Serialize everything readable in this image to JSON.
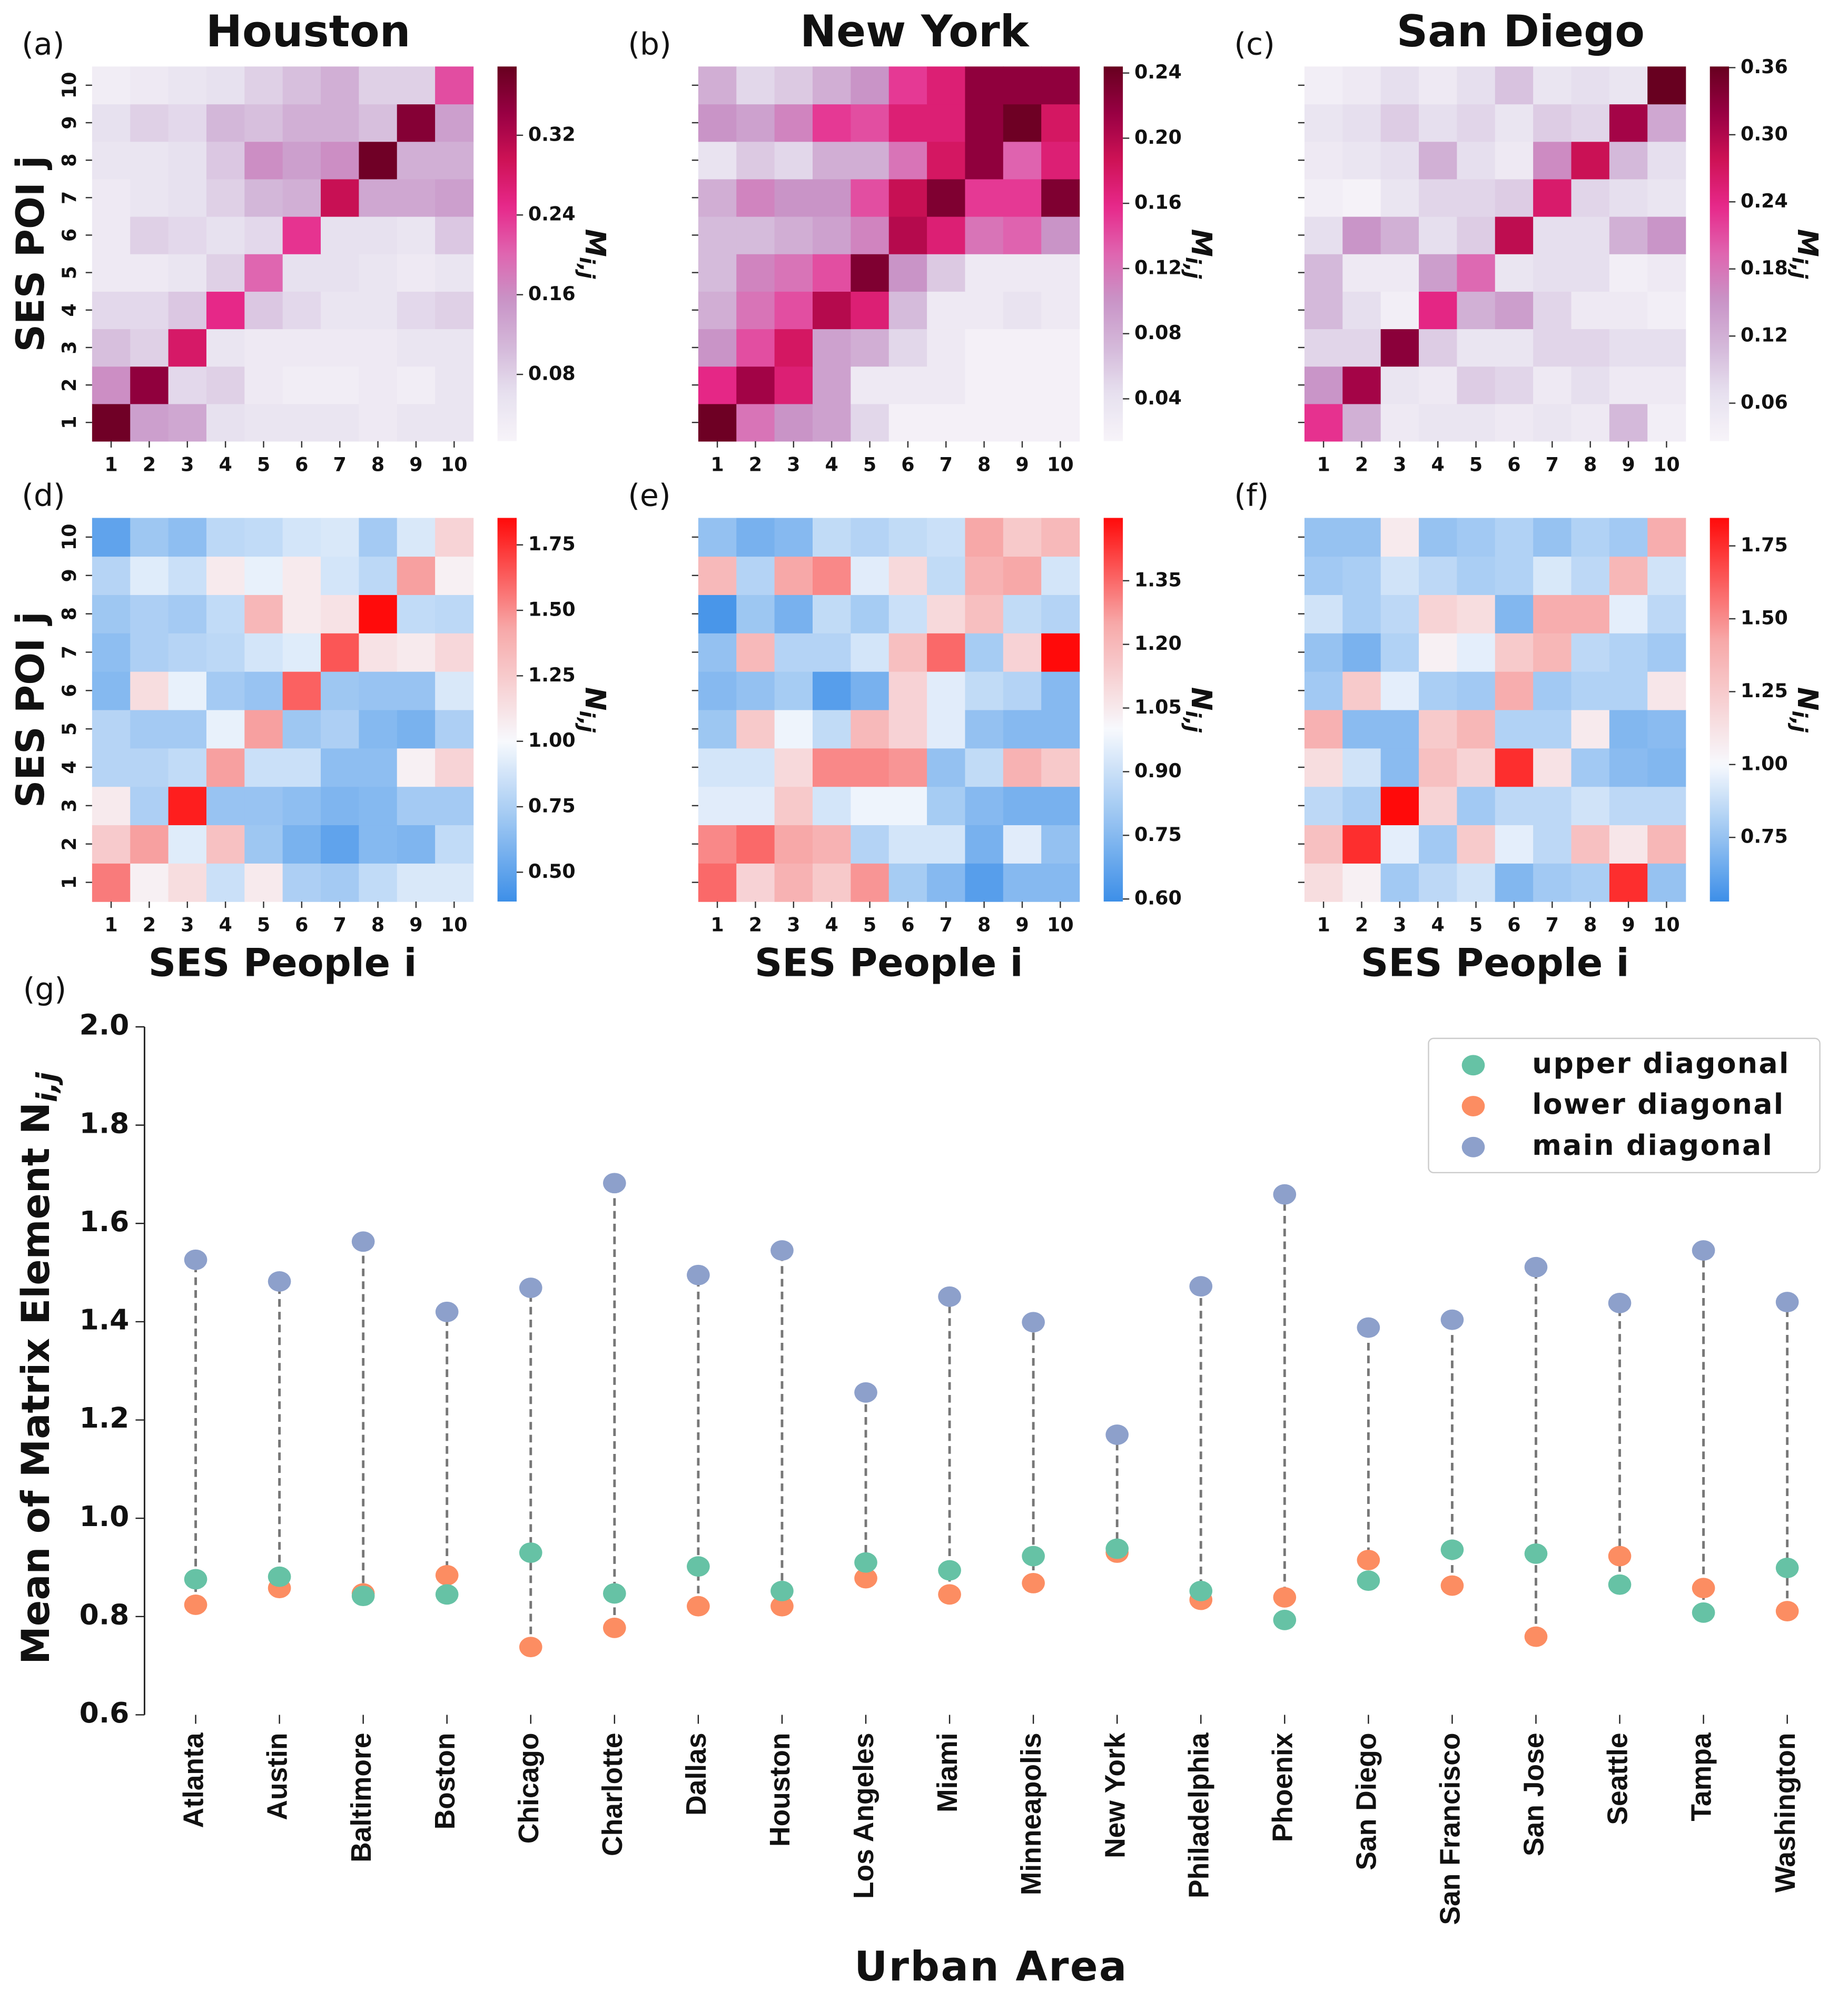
{
  "chart_data": [
    {
      "type": "heatmap",
      "panel": "(a)",
      "title": "Houston",
      "ylabel": "SES POI j",
      "x_categories": [
        "1",
        "2",
        "3",
        "4",
        "5",
        "6",
        "7",
        "8",
        "9",
        "10"
      ],
      "y_categories": [
        "1",
        "2",
        "3",
        "4",
        "5",
        "6",
        "7",
        "8",
        "9",
        "10"
      ],
      "values": [
        [
          0.38,
          0.14,
          0.13,
          0.06,
          0.05,
          0.05,
          0.05,
          0.04,
          0.05,
          0.05
        ],
        [
          0.16,
          0.35,
          0.07,
          0.08,
          0.04,
          0.03,
          0.03,
          0.04,
          0.03,
          0.05
        ],
        [
          0.1,
          0.08,
          0.28,
          0.05,
          0.04,
          0.04,
          0.04,
          0.04,
          0.05,
          0.05
        ],
        [
          0.07,
          0.07,
          0.09,
          0.25,
          0.09,
          0.07,
          0.05,
          0.05,
          0.07,
          0.08
        ],
        [
          0.04,
          0.04,
          0.05,
          0.08,
          0.2,
          0.06,
          0.06,
          0.05,
          0.04,
          0.05
        ],
        [
          0.04,
          0.08,
          0.07,
          0.06,
          0.07,
          0.24,
          0.06,
          0.06,
          0.05,
          0.09
        ],
        [
          0.04,
          0.05,
          0.06,
          0.08,
          0.11,
          0.12,
          0.3,
          0.13,
          0.13,
          0.14
        ],
        [
          0.05,
          0.05,
          0.06,
          0.09,
          0.16,
          0.14,
          0.16,
          0.38,
          0.12,
          0.12
        ],
        [
          0.06,
          0.08,
          0.07,
          0.11,
          0.1,
          0.12,
          0.12,
          0.1,
          0.36,
          0.14
        ],
        [
          0.03,
          0.04,
          0.05,
          0.06,
          0.08,
          0.1,
          0.12,
          0.08,
          0.08,
          0.22
        ]
      ],
      "clim": [
        0.013,
        0.389
      ],
      "cticks": [
        0.08,
        0.16,
        0.24,
        0.32
      ],
      "colorbar_label": {
        "symbol": "M",
        "subscript": "i,j"
      },
      "colormap": [
        "#f7f4f9",
        "#e7e1ef",
        "#d4b9da",
        "#c994c7",
        "#df65b0",
        "#e7298a",
        "#ce1256",
        "#980043",
        "#67001f"
      ]
    },
    {
      "type": "heatmap",
      "panel": "(b)",
      "title": "New York",
      "x_categories": [
        "1",
        "2",
        "3",
        "4",
        "5",
        "6",
        "7",
        "8",
        "9",
        "10"
      ],
      "values": [
        [
          0.24,
          0.12,
          0.1,
          0.09,
          0.05,
          0.02,
          0.02,
          0.02,
          0.02,
          0.02
        ],
        [
          0.16,
          0.21,
          0.17,
          0.09,
          0.03,
          0.03,
          0.03,
          0.02,
          0.02,
          0.02
        ],
        [
          0.1,
          0.14,
          0.18,
          0.09,
          0.08,
          0.05,
          0.03,
          0.02,
          0.02,
          0.02
        ],
        [
          0.08,
          0.12,
          0.14,
          0.2,
          0.17,
          0.07,
          0.03,
          0.03,
          0.04,
          0.03
        ],
        [
          0.07,
          0.11,
          0.12,
          0.14,
          0.23,
          0.1,
          0.06,
          0.03,
          0.03,
          0.03
        ],
        [
          0.07,
          0.07,
          0.08,
          0.09,
          0.11,
          0.2,
          0.17,
          0.12,
          0.13,
          0.1
        ],
        [
          0.08,
          0.11,
          0.1,
          0.1,
          0.14,
          0.19,
          0.23,
          0.15,
          0.15,
          0.23
        ],
        [
          0.04,
          0.06,
          0.05,
          0.08,
          0.08,
          0.12,
          0.18,
          0.22,
          0.13,
          0.17
        ],
        [
          0.1,
          0.09,
          0.11,
          0.15,
          0.14,
          0.17,
          0.17,
          0.22,
          0.24,
          0.18
        ],
        [
          0.08,
          0.05,
          0.06,
          0.08,
          0.1,
          0.15,
          0.17,
          0.22,
          0.22,
          0.22
        ]
      ],
      "clim": [
        0.014,
        0.244
      ],
      "cticks": [
        0.04,
        0.08,
        0.12,
        0.16,
        {
          "value": 0.2,
          "label": "0.20"
        },
        0.24
      ],
      "colorbar_label": {
        "symbol": "M",
        "subscript": "i,j"
      },
      "colormap": [
        "#f7f4f9",
        "#e7e1ef",
        "#d4b9da",
        "#c994c7",
        "#df65b0",
        "#e7298a",
        "#ce1256",
        "#980043",
        "#67001f"
      ]
    },
    {
      "type": "heatmap",
      "panel": "(c)",
      "title": "San Diego",
      "x_categories": [
        "1",
        "2",
        "3",
        "4",
        "5",
        "6",
        "7",
        "8",
        "9",
        "10"
      ],
      "values": [
        [
          0.23,
          0.12,
          0.05,
          0.06,
          0.06,
          0.05,
          0.06,
          0.05,
          0.11,
          0.04
        ],
        [
          0.15,
          0.31,
          0.06,
          0.05,
          0.09,
          0.08,
          0.05,
          0.07,
          0.05,
          0.05
        ],
        [
          0.08,
          0.08,
          0.33,
          0.09,
          0.06,
          0.06,
          0.08,
          0.08,
          0.07,
          0.07
        ],
        [
          0.11,
          0.07,
          0.04,
          0.24,
          0.12,
          0.14,
          0.08,
          0.05,
          0.05,
          0.04
        ],
        [
          0.11,
          0.05,
          0.05,
          0.14,
          0.19,
          0.06,
          0.07,
          0.07,
          0.04,
          0.05
        ],
        [
          0.07,
          0.15,
          0.12,
          0.07,
          0.09,
          0.29,
          0.07,
          0.07,
          0.12,
          0.15
        ],
        [
          0.04,
          0.03,
          0.06,
          0.08,
          0.08,
          0.09,
          0.26,
          0.08,
          0.07,
          0.06
        ],
        [
          0.05,
          0.06,
          0.07,
          0.12,
          0.07,
          0.05,
          0.16,
          0.28,
          0.11,
          0.07
        ],
        [
          0.06,
          0.07,
          0.09,
          0.07,
          0.08,
          0.06,
          0.09,
          0.08,
          0.31,
          0.13
        ],
        [
          0.04,
          0.05,
          0.07,
          0.05,
          0.07,
          0.1,
          0.06,
          0.07,
          0.06,
          0.36
        ]
      ],
      "clim": [
        0.026,
        0.361
      ],
      "cticks": [
        0.06,
        0.12,
        0.18,
        0.24,
        {
          "value": 0.3,
          "label": "0.30"
        },
        0.36
      ],
      "colorbar_label": {
        "symbol": "M",
        "subscript": "i,j"
      },
      "colormap": [
        "#f7f4f9",
        "#e7e1ef",
        "#d4b9da",
        "#c994c7",
        "#df65b0",
        "#e7298a",
        "#ce1256",
        "#980043",
        "#67001f"
      ]
    },
    {
      "type": "heatmap",
      "panel": "(d)",
      "ylabel": "SES POI j",
      "xlabel": "SES People i",
      "x_categories": [
        "1",
        "2",
        "3",
        "4",
        "5",
        "6",
        "7",
        "8",
        "9",
        "10"
      ],
      "y_categories": [
        "1",
        "2",
        "3",
        "4",
        "5",
        "6",
        "7",
        "8",
        "9",
        "10"
      ],
      "values": [
        [
          1.55,
          1.05,
          1.15,
          0.85,
          1.08,
          0.75,
          0.72,
          0.82,
          0.9,
          0.9
        ],
        [
          1.25,
          1.45,
          0.92,
          1.3,
          0.7,
          0.58,
          0.5,
          0.62,
          0.6,
          0.82
        ],
        [
          1.08,
          0.75,
          1.8,
          0.68,
          0.68,
          0.65,
          0.6,
          0.62,
          0.72,
          0.72
        ],
        [
          0.78,
          0.78,
          0.82,
          1.45,
          0.85,
          0.85,
          0.65,
          0.65,
          1.05,
          1.2
        ],
        [
          0.78,
          0.72,
          0.72,
          0.95,
          1.45,
          0.7,
          0.75,
          0.62,
          0.58,
          0.75
        ],
        [
          0.62,
          1.15,
          0.95,
          0.72,
          0.68,
          1.62,
          0.7,
          0.68,
          0.68,
          0.9
        ],
        [
          0.65,
          0.75,
          0.78,
          0.8,
          0.88,
          0.92,
          1.65,
          1.12,
          1.08,
          1.18
        ],
        [
          0.7,
          0.75,
          0.72,
          0.82,
          1.35,
          1.08,
          1.12,
          1.85,
          0.82,
          0.8
        ],
        [
          0.78,
          0.92,
          0.85,
          1.08,
          0.95,
          1.08,
          0.88,
          0.8,
          1.45,
          1.05
        ],
        [
          0.5,
          0.7,
          0.65,
          0.8,
          0.82,
          0.88,
          0.9,
          0.72,
          0.9,
          1.2
        ]
      ],
      "clim": [
        0.388,
        1.853
      ],
      "center": 1.0,
      "cticks": [
        {
          "value": 0.5,
          "label": "0.50"
        },
        0.75,
        {
          "value": 1,
          "label": "1.00"
        },
        1.25,
        {
          "value": 1.5,
          "label": "1.50"
        },
        1.75
      ],
      "colorbar_label": {
        "symbol": "N",
        "subscript": "i,j"
      },
      "colormap": [
        "#3d8fe8",
        "#9cc6f2",
        "#f7f9fd",
        "#f7a9a9",
        "#ff0a0a"
      ]
    },
    {
      "type": "heatmap",
      "panel": "(e)",
      "xlabel": "SES People i",
      "x_categories": [
        "1",
        "2",
        "3",
        "4",
        "5",
        "6",
        "7",
        "8",
        "9",
        "10"
      ],
      "values": [
        [
          1.35,
          1.12,
          1.22,
          1.15,
          1.28,
          0.82,
          0.75,
          0.65,
          0.75,
          0.75
        ],
        [
          1.3,
          1.35,
          1.25,
          1.22,
          0.85,
          0.92,
          0.92,
          0.72,
          0.95,
          0.78
        ],
        [
          0.95,
          0.95,
          1.15,
          0.92,
          0.98,
          0.98,
          0.82,
          0.75,
          0.72,
          0.72
        ],
        [
          0.92,
          0.92,
          1.1,
          1.3,
          1.3,
          1.28,
          0.78,
          0.88,
          1.22,
          1.15
        ],
        [
          0.8,
          1.15,
          0.98,
          0.88,
          1.2,
          1.12,
          0.95,
          0.78,
          0.75,
          0.75
        ],
        [
          0.75,
          0.78,
          0.82,
          0.65,
          0.72,
          1.12,
          0.95,
          0.88,
          0.85,
          0.75
        ],
        [
          0.78,
          1.2,
          0.85,
          0.85,
          0.92,
          1.18,
          1.35,
          0.82,
          1.12,
          1.5
        ],
        [
          0.62,
          0.8,
          0.72,
          0.88,
          0.82,
          0.9,
          1.1,
          1.18,
          0.88,
          0.85
        ],
        [
          1.2,
          0.85,
          1.25,
          1.3,
          0.95,
          1.1,
          0.88,
          1.22,
          1.25,
          0.92
        ],
        [
          0.78,
          0.72,
          0.75,
          0.88,
          0.85,
          0.88,
          0.9,
          1.25,
          1.15,
          1.2
        ]
      ],
      "clim": [
        0.594,
        1.498
      ],
      "center": 1.0,
      "cticks": [
        {
          "value": 0.6,
          "label": "0.60"
        },
        0.75,
        {
          "value": 0.9,
          "label": "0.90"
        },
        1.05,
        {
          "value": 1.2,
          "label": "1.20"
        },
        1.35
      ],
      "colorbar_label": {
        "symbol": "N",
        "subscript": "i,j"
      },
      "colormap": [
        "#3d8fe8",
        "#9cc6f2",
        "#f7f9fd",
        "#f7a9a9",
        "#ff0a0a"
      ]
    },
    {
      "type": "heatmap",
      "panel": "(f)",
      "xlabel": "SES People i",
      "x_categories": [
        "1",
        "2",
        "3",
        "4",
        "5",
        "6",
        "7",
        "8",
        "9",
        "10"
      ],
      "values": [
        [
          1.15,
          1.05,
          0.78,
          0.85,
          0.9,
          0.7,
          0.78,
          0.8,
          1.75,
          0.75
        ],
        [
          1.3,
          1.75,
          0.95,
          0.78,
          1.25,
          0.95,
          0.85,
          1.3,
          1.1,
          1.35
        ],
        [
          0.85,
          0.8,
          1.85,
          1.2,
          0.78,
          0.85,
          0.85,
          0.9,
          0.85,
          0.85
        ],
        [
          1.15,
          0.9,
          0.72,
          1.3,
          1.2,
          1.75,
          1.12,
          0.78,
          0.72,
          0.7
        ],
        [
          1.38,
          0.72,
          0.72,
          1.25,
          1.35,
          0.82,
          0.82,
          1.08,
          0.7,
          0.72
        ],
        [
          0.78,
          1.25,
          0.95,
          0.8,
          0.78,
          1.4,
          0.78,
          0.82,
          0.82,
          1.1
        ],
        [
          0.75,
          0.68,
          0.82,
          1.05,
          0.95,
          1.25,
          1.35,
          0.85,
          0.82,
          0.78
        ],
        [
          0.9,
          0.8,
          0.85,
          1.2,
          1.15,
          0.7,
          1.4,
          1.4,
          0.95,
          0.85
        ],
        [
          0.78,
          0.8,
          0.9,
          0.85,
          0.8,
          0.82,
          0.92,
          0.85,
          1.35,
          0.9
        ],
        [
          0.75,
          0.75,
          1.08,
          0.75,
          0.78,
          0.82,
          0.75,
          0.82,
          0.78,
          1.4
        ]
      ],
      "clim": [
        0.53,
        1.846
      ],
      "center": 1.0,
      "cticks": [
        0.75,
        {
          "value": 1,
          "label": "1.00"
        },
        1.25,
        {
          "value": 1.5,
          "label": "1.50"
        },
        1.75
      ],
      "colorbar_label": {
        "symbol": "N",
        "subscript": "i,j"
      },
      "colormap": [
        "#3d8fe8",
        "#9cc6f2",
        "#f7f9fd",
        "#f7a9a9",
        "#ff0a0a"
      ]
    },
    {
      "type": "dumbbell",
      "panel": "(g)",
      "xlabel": "Urban Area",
      "ylabel": "Mean of Matrix Element N",
      "ylabel_subscript": "i,j",
      "categories": [
        "Atlanta",
        "Austin",
        "Baltimore",
        "Boston",
        "Chicago",
        "Charlotte",
        "Dallas",
        "Houston",
        "Los Angeles",
        "Miami",
        "Minneapolis",
        "New York",
        "Philadelphia",
        "Phoenix",
        "San Diego",
        "San Francisco",
        "San Jose",
        "Seattle",
        "Tampa",
        "Washington"
      ],
      "series": [
        {
          "name": "upper diagonal",
          "color": "#66c2a5",
          "values": [
            0.876,
            0.881,
            0.842,
            0.845,
            0.93,
            0.847,
            0.902,
            0.852,
            0.91,
            0.894,
            0.923,
            0.938,
            0.852,
            0.793,
            0.873,
            0.936,
            0.928,
            0.865,
            0.808,
            0.899
          ]
        },
        {
          "name": "lower diagonal",
          "color": "#fc8d62",
          "values": [
            0.824,
            0.858,
            0.847,
            0.884,
            0.738,
            0.777,
            0.821,
            0.821,
            0.878,
            0.845,
            0.868,
            0.93,
            0.834,
            0.839,
            0.915,
            0.863,
            0.759,
            0.923,
            0.858,
            0.811
          ]
        },
        {
          "name": "main diagonal",
          "color": "#8da0cb",
          "values": [
            1.526,
            1.482,
            1.563,
            1.42,
            1.469,
            1.682,
            1.495,
            1.545,
            1.256,
            1.451,
            1.399,
            1.17,
            1.472,
            1.659,
            1.388,
            1.404,
            1.511,
            1.438,
            1.545,
            1.44
          ]
        }
      ],
      "ylim": [
        0.6,
        2.0
      ],
      "yticks": [
        0.6,
        0.8,
        {
          "value": 1,
          "label": "1.0"
        },
        1.2,
        1.4,
        1.6,
        1.8,
        {
          "value": 2,
          "label": "2.0"
        }
      ],
      "legend": "upper right",
      "connector_color": "#777777"
    }
  ]
}
